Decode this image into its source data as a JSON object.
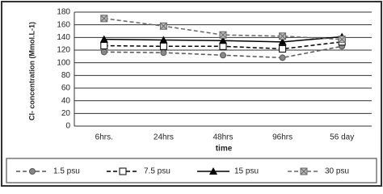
{
  "chart_data": {
    "type": "line",
    "y_label": "Cl- concentration (Mmol.L-1)",
    "x_label": "time",
    "categories": [
      "6hrs.",
      "24hrs",
      "48hrs",
      "96hrs",
      "56 day"
    ],
    "series": [
      {
        "name": "1.5 psu",
        "color": "#555555",
        "marker": "circle",
        "dashed": true,
        "values": [
          117,
          116,
          112,
          108,
          126
        ]
      },
      {
        "name": "7.5 psu",
        "color": "#000000",
        "marker": "square",
        "dashed": true,
        "values": [
          127,
          126,
          126,
          122,
          133
        ]
      },
      {
        "name": "15 psu",
        "color": "#000000",
        "marker": "triangle",
        "dashed": false,
        "values": [
          137,
          136,
          135,
          133,
          141
        ]
      },
      {
        "name": "30 psu",
        "color": "#666666",
        "marker": "xbox",
        "dashed": true,
        "values": [
          170,
          158,
          144,
          142,
          137
        ]
      }
    ],
    "ylim": [
      0,
      180
    ],
    "yticks": [
      0,
      20,
      40,
      60,
      80,
      100,
      120,
      140,
      160,
      180
    ],
    "grid": true,
    "legend": "bottom"
  }
}
